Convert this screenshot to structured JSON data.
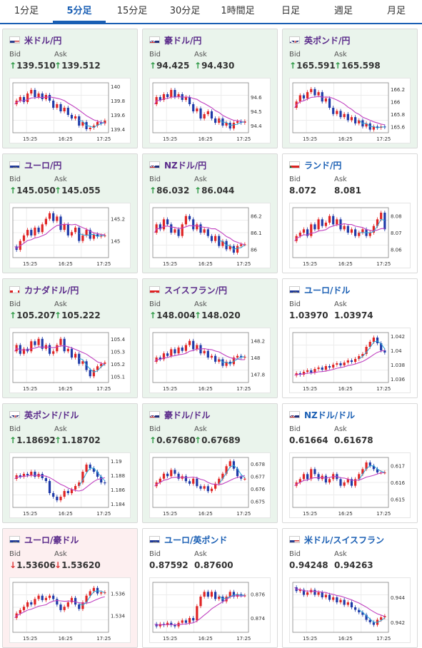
{
  "tabs": [
    {
      "label": "1分足",
      "active": false
    },
    {
      "label": "5分足",
      "active": true
    },
    {
      "label": "15分足",
      "active": false
    },
    {
      "label": "30分足",
      "active": false
    },
    {
      "label": "1時間足",
      "active": false
    },
    {
      "label": "日足",
      "active": false
    },
    {
      "label": "週足",
      "active": false
    },
    {
      "label": "月足",
      "active": false
    }
  ],
  "labels": {
    "bid": "Bid",
    "ask": "Ask"
  },
  "colors": {
    "up_bg": "#eaf4ec",
    "down_bg": "#fdeff0",
    "up_arrow": "#2f9a46",
    "down_arrow": "#d33333",
    "candle_up": "#e02424",
    "candle_down": "#1f3aa8",
    "ma_long": "#c040c0",
    "ma_short": "#2aa7d8"
  },
  "pairs": [
    {
      "name": "米ドル/円",
      "flag": "us-flag-icon",
      "trend": "up",
      "bid": "139.510",
      "ask": "139.512",
      "x_ticks": [
        "15:25",
        "16:25",
        "17:25"
      ],
      "y_ticks": [
        "140",
        "139.8",
        "139.6",
        "139.4"
      ],
      "y_range": [
        139.35,
        140.05
      ],
      "path": [
        139.75,
        139.8,
        139.85,
        139.78,
        139.9,
        139.95,
        139.85,
        139.9,
        139.82,
        139.88,
        139.8,
        139.7,
        139.75,
        139.65,
        139.7,
        139.6,
        139.55,
        139.58,
        139.45,
        139.5,
        139.4,
        139.42,
        139.45,
        139.5,
        139.48,
        139.52
      ]
    },
    {
      "name": "豪ドル/円",
      "flag": "au-flag-icon",
      "trend": "up",
      "bid": "94.425",
      "ask": "94.430",
      "x_ticks": [
        "15:25",
        "16:25",
        "17:25"
      ],
      "y_ticks": [
        "94.6",
        "94.5",
        "94.4"
      ],
      "y_range": [
        94.35,
        94.7
      ],
      "path": [
        94.55,
        94.6,
        94.58,
        94.62,
        94.6,
        94.65,
        94.6,
        94.62,
        94.58,
        94.6,
        94.55,
        94.5,
        94.52,
        94.45,
        94.48,
        94.5,
        94.45,
        94.42,
        94.45,
        94.4,
        94.42,
        94.38,
        94.42,
        94.43,
        94.42,
        94.43
      ]
    },
    {
      "name": "英ポンド/円",
      "flag": "gb-flag-icon",
      "trend": "up",
      "bid": "165.591",
      "ask": "165.598",
      "x_ticks": [
        "15:25",
        "16:25",
        "17:25"
      ],
      "y_ticks": [
        "166.2",
        "166",
        "165.8",
        "165.6"
      ],
      "y_range": [
        165.5,
        166.3
      ],
      "path": [
        165.9,
        166.0,
        166.1,
        166.05,
        166.15,
        166.2,
        166.1,
        166.15,
        166.0,
        166.05,
        165.9,
        165.8,
        165.85,
        165.75,
        165.8,
        165.7,
        165.75,
        165.65,
        165.7,
        165.6,
        165.65,
        165.55,
        165.6,
        165.58,
        165.6,
        165.59
      ]
    },
    {
      "name": "ユーロ/円",
      "flag": "eu-flag-icon",
      "trend": "up",
      "bid": "145.050",
      "ask": "145.055",
      "x_ticks": [
        "15:25",
        "16:25",
        "17:25"
      ],
      "y_ticks": [
        "145.2",
        "145"
      ],
      "y_range": [
        144.85,
        145.3
      ],
      "path": [
        144.95,
        144.92,
        145.0,
        145.05,
        145.1,
        145.05,
        145.12,
        145.08,
        145.15,
        145.2,
        145.25,
        145.18,
        145.22,
        145.1,
        145.15,
        145.05,
        145.08,
        145.12,
        145.0,
        145.05,
        145.1,
        145.02,
        145.06,
        145.04,
        145.05,
        145.05
      ]
    },
    {
      "name": "NZドル/円",
      "flag": "nz-flag-icon",
      "trend": "up",
      "bid": "86.032",
      "ask": "86.044",
      "x_ticks": [
        "15:25",
        "16:25",
        "17:25"
      ],
      "y_ticks": [
        "86.2",
        "86.1",
        "86"
      ],
      "y_range": [
        85.95,
        86.25
      ],
      "path": [
        86.1,
        86.15,
        86.12,
        86.18,
        86.15,
        86.1,
        86.12,
        86.08,
        86.15,
        86.2,
        86.18,
        86.12,
        86.15,
        86.1,
        86.12,
        86.08,
        86.05,
        86.08,
        86.02,
        86.05,
        86.0,
        86.02,
        85.98,
        86.02,
        86.03,
        86.03
      ]
    },
    {
      "name": "ランド/円",
      "flag": "za-flag-icon",
      "trend": "flat",
      "bid": "8.072",
      "ask": "8.081",
      "x_ticks": [
        "15:25",
        "16:25",
        "17:25"
      ],
      "y_ticks": [
        "8.08",
        "8.07",
        "8.06"
      ],
      "y_range": [
        8.055,
        8.085
      ],
      "path": [
        8.065,
        8.068,
        8.07,
        8.072,
        8.068,
        8.075,
        8.072,
        8.078,
        8.074,
        8.076,
        8.08,
        8.075,
        8.078,
        8.072,
        8.074,
        8.07,
        8.072,
        8.068,
        8.07,
        8.072,
        8.068,
        8.07,
        8.074,
        8.078,
        8.082,
        8.072
      ]
    },
    {
      "name": "カナダドル/円",
      "flag": "ca-flag-icon",
      "trend": "up",
      "bid": "105.207",
      "ask": "105.222",
      "x_ticks": [
        "15:25",
        "16:25",
        "17:25"
      ],
      "y_ticks": [
        "105.4",
        "105.3",
        "105.2",
        "105.1"
      ],
      "y_range": [
        105.05,
        105.45
      ],
      "path": [
        105.3,
        105.35,
        105.28,
        105.32,
        105.3,
        105.38,
        105.35,
        105.4,
        105.32,
        105.35,
        105.28,
        105.3,
        105.35,
        105.4,
        105.3,
        105.32,
        105.25,
        105.28,
        105.2,
        105.22,
        105.15,
        105.1,
        105.15,
        105.18,
        105.2,
        105.21
      ]
    },
    {
      "name": "スイスフラン/円",
      "flag": "ch-flag-icon",
      "trend": "up",
      "bid": "148.004",
      "ask": "148.020",
      "x_ticks": [
        "15:25",
        "16:25",
        "17:25"
      ],
      "y_ticks": [
        "148.2",
        "148",
        "147.8"
      ],
      "y_range": [
        147.7,
        148.3
      ],
      "path": [
        147.95,
        148.0,
        147.98,
        148.05,
        148.02,
        148.1,
        148.05,
        148.12,
        148.08,
        148.15,
        148.2,
        148.1,
        148.15,
        148.05,
        148.08,
        148.0,
        148.02,
        147.95,
        147.98,
        147.9,
        147.95,
        147.92,
        148.0,
        148.02,
        148.0,
        148.01
      ]
    },
    {
      "name": "ユーロ/ドル",
      "flag": "eu-us-flag-icon",
      "trend": "flat",
      "bid": "1.03970",
      "ask": "1.03974",
      "x_ticks": [
        "15:25",
        "16:25",
        "17:25"
      ],
      "y_ticks": [
        "1.042",
        "1.04",
        "1.038",
        "1.036"
      ],
      "y_range": [
        1.0355,
        1.0425
      ],
      "path": [
        1.0365,
        1.0368,
        1.0366,
        1.037,
        1.0372,
        1.0369,
        1.0374,
        1.0376,
        1.0373,
        1.0378,
        1.0376,
        1.038,
        1.0382,
        1.0379,
        1.0383,
        1.0386,
        1.0384,
        1.0388,
        1.0392,
        1.0395,
        1.0405,
        1.0412,
        1.0418,
        1.041,
        1.04,
        1.0397
      ]
    },
    {
      "name": "英ポンド/ドル",
      "flag": "gb-us-flag-icon",
      "trend": "up",
      "bid": "1.18692",
      "ask": "1.18702",
      "x_ticks": [
        "15:25",
        "16:25",
        "17:25"
      ],
      "y_ticks": [
        "1.19",
        "1.188",
        "1.186",
        "1.184"
      ],
      "y_range": [
        1.1835,
        1.1905
      ],
      "path": [
        1.1875,
        1.188,
        1.1878,
        1.1882,
        1.188,
        1.1885,
        1.1878,
        1.1882,
        1.1876,
        1.1872,
        1.1855,
        1.185,
        1.1845,
        1.185,
        1.1858,
        1.1855,
        1.186,
        1.1865,
        1.187,
        1.1885,
        1.1895,
        1.189,
        1.1885,
        1.1878,
        1.187,
        1.1869
      ]
    },
    {
      "name": "豪ドル/ドル",
      "flag": "au-us-flag-icon",
      "trend": "up",
      "bid": "0.67680",
      "ask": "0.67689",
      "x_ticks": [
        "15:25",
        "16:25",
        "17:25"
      ],
      "y_ticks": [
        "0.678",
        "0.677",
        "0.676",
        "0.675"
      ],
      "y_range": [
        0.6745,
        0.6785
      ],
      "path": [
        0.6762,
        0.6765,
        0.6768,
        0.6772,
        0.677,
        0.6775,
        0.6772,
        0.6768,
        0.677,
        0.6766,
        0.6764,
        0.6768,
        0.6762,
        0.676,
        0.6762,
        0.6758,
        0.676,
        0.6764,
        0.6768,
        0.6772,
        0.6778,
        0.6782,
        0.6776,
        0.677,
        0.6768,
        0.6768
      ]
    },
    {
      "name": "NZドル/ドル",
      "flag": "nz-us-flag-icon",
      "trend": "flat",
      "bid": "0.61664",
      "ask": "0.61678",
      "x_ticks": [
        "15:25",
        "16:25",
        "17:25"
      ],
      "y_ticks": [
        "0.617",
        "0.616",
        "0.615"
      ],
      "y_range": [
        0.6145,
        0.6175
      ],
      "path": [
        0.6158,
        0.616,
        0.6162,
        0.6165,
        0.6162,
        0.6168,
        0.6165,
        0.6162,
        0.6164,
        0.616,
        0.6162,
        0.6165,
        0.6162,
        0.6158,
        0.616,
        0.6162,
        0.6158,
        0.6162,
        0.6165,
        0.6168,
        0.6172,
        0.617,
        0.6168,
        0.6166,
        0.6166,
        0.6166
      ]
    },
    {
      "name": "ユーロ/豪ドル",
      "flag": "eu-au-flag-icon",
      "trend": "down",
      "bid": "1.53606",
      "ask": "1.53620",
      "x_ticks": [
        "15:25",
        "16:25",
        "17:25"
      ],
      "y_ticks": [
        "1.536",
        "1.534"
      ],
      "y_range": [
        1.5325,
        1.537
      ],
      "path": [
        1.5338,
        1.5342,
        1.5345,
        1.5348,
        1.5352,
        1.535,
        1.5355,
        1.5358,
        1.5354,
        1.5356,
        1.5358,
        1.5355,
        1.535,
        1.5345,
        1.5348,
        1.5352,
        1.5356,
        1.535,
        1.5346,
        1.5352,
        1.5358,
        1.5362,
        1.5365,
        1.536,
        1.5361,
        1.5361
      ]
    },
    {
      "name": "ユーロ/英ポンド",
      "flag": "eu-gb-flag-icon",
      "trend": "flat",
      "bid": "0.87592",
      "ask": "0.87600",
      "x_ticks": [
        "15:25",
        "16:25",
        "17:25"
      ],
      "y_ticks": [
        "0.876",
        "0.874"
      ],
      "y_range": [
        0.8728,
        0.877
      ],
      "path": [
        0.8735,
        0.8733,
        0.8735,
        0.8734,
        0.8736,
        0.8734,
        0.8733,
        0.8736,
        0.8738,
        0.8736,
        0.874,
        0.8738,
        0.875,
        0.8758,
        0.8762,
        0.8758,
        0.8762,
        0.8756,
        0.8758,
        0.8754,
        0.8758,
        0.8762,
        0.8758,
        0.876,
        0.8759,
        0.8759
      ]
    },
    {
      "name": "米ドル/スイスフラン",
      "flag": "us-ch-flag-icon",
      "trend": "flat",
      "bid": "0.94248",
      "ask": "0.94263",
      "x_ticks": [
        "15:25",
        "16:25",
        "17:25"
      ],
      "y_ticks": [
        "0.944",
        "0.942"
      ],
      "y_range": [
        0.9412,
        0.9452
      ],
      "path": [
        0.9448,
        0.9445,
        0.9446,
        0.9442,
        0.9444,
        0.9446,
        0.9442,
        0.9444,
        0.944,
        0.9442,
        0.9438,
        0.944,
        0.9436,
        0.9438,
        0.9434,
        0.9436,
        0.9432,
        0.943,
        0.9428,
        0.9426,
        0.9422,
        0.942,
        0.9418,
        0.9422,
        0.9424,
        0.9425
      ]
    }
  ]
}
